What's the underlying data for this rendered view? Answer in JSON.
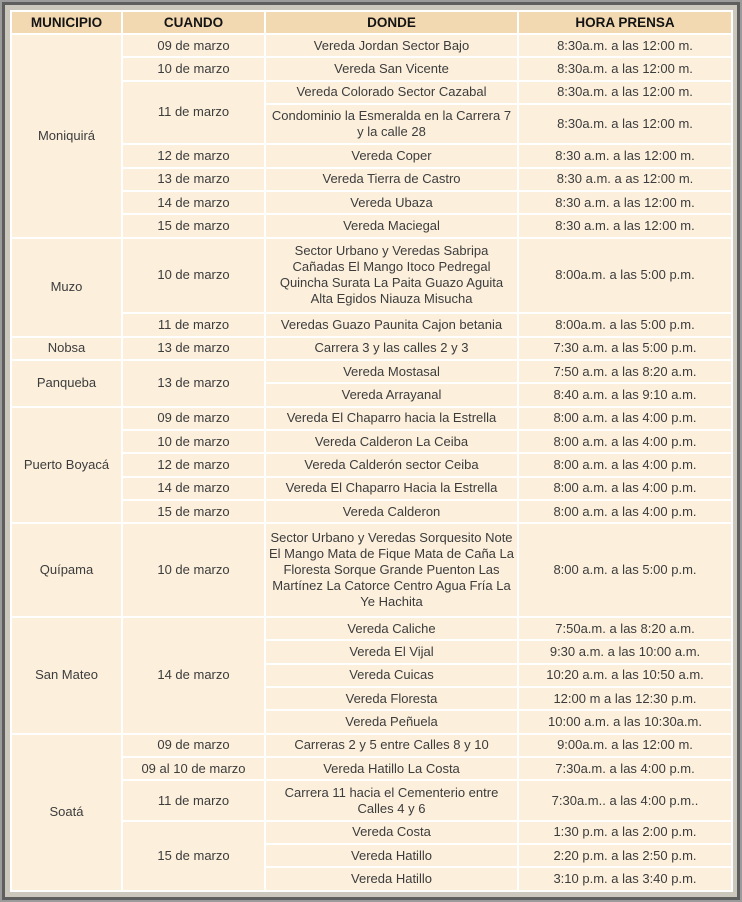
{
  "theme": {
    "header_bg": "#f3d9b1",
    "header_text": "#141414",
    "row_bg": "#fcf0dd",
    "grid_color": "#ffffff",
    "text_color": "#3c3c3c",
    "frame_dark": "#5e5e5e",
    "frame_light": "#ccc7bc"
  },
  "table": {
    "headers": [
      "MUNICIPIO",
      "CUANDO",
      "DONDE",
      "HORA PRENSA"
    ],
    "groups": [
      {
        "municipio": "Moniquirá",
        "rows": [
          {
            "cuando": {
              "text": "09 de marzo",
              "span": 1
            },
            "donde": "Vereda Jordan Sector Bajo",
            "hora": "8:30a.m. a las 12:00 m."
          },
          {
            "cuando": {
              "text": "10 de marzo",
              "span": 1
            },
            "donde": "Vereda San Vicente",
            "hora": "8:30a.m. a las 12:00 m."
          },
          {
            "cuando": {
              "text": "11 de marzo",
              "span": 2
            },
            "donde": "Vereda Colorado Sector Cazabal",
            "hora": "8:30a.m. a las 12:00 m."
          },
          {
            "donde": "Condominio la Esmeralda en la Carrera 7 y la calle 28",
            "hora": "8:30a.m. a las 12:00 m."
          },
          {
            "cuando": {
              "text": "12 de marzo",
              "span": 1
            },
            "donde": "Vereda Coper",
            "hora": "8:30 a.m. a las 12:00 m."
          },
          {
            "cuando": {
              "text": "13 de marzo",
              "span": 1
            },
            "donde": "Vereda Tierra de Castro",
            "hora": "8:30 a.m. a as 12:00 m."
          },
          {
            "cuando": {
              "text": "14 de marzo",
              "span": 1
            },
            "donde": "Vereda Ubaza",
            "hora": "8:30 a.m. a las 12:00 m."
          },
          {
            "cuando": {
              "text": "15 de marzo",
              "span": 1
            },
            "donde": "Vereda Maciegal",
            "hora": "8:30 a.m. a las 12:00 m."
          }
        ]
      },
      {
        "municipio": "Muzo",
        "rows": [
          {
            "cuando": {
              "text": "10 de marzo",
              "span": 1
            },
            "donde": "Sector Urbano y Veredas Sabripa Cañadas El Mango Itoco Pedregal Quincha Surata La Paita Guazo Aguita Alta Egidos Niauza Misucha",
            "hora": "8:00a.m. a las 5:00 p.m."
          },
          {
            "cuando": {
              "text": "11 de marzo",
              "span": 1
            },
            "donde": "Veredas Guazo Paunita Cajon betania",
            "hora": "8:00a.m. a las 5:00 p.m."
          }
        ]
      },
      {
        "municipio": "Nobsa",
        "rows": [
          {
            "cuando": {
              "text": "13 de marzo",
              "span": 1
            },
            "donde": "Carrera 3 y las calles 2 y 3",
            "hora": "7:30 a.m. a las 5:00 p.m."
          }
        ]
      },
      {
        "municipio": "Panqueba",
        "rows": [
          {
            "cuando": {
              "text": "13 de marzo",
              "span": 2
            },
            "donde": "Vereda Mostasal",
            "hora": "7:50 a.m. a las 8:20 a.m."
          },
          {
            "donde": "Vereda Arrayanal",
            "hora": "8:40 a.m. a las 9:10 a.m."
          }
        ]
      },
      {
        "municipio": "Puerto Boyacá",
        "rows": [
          {
            "cuando": {
              "text": "09 de marzo",
              "span": 1
            },
            "donde": "Vereda El Chaparro hacia la Estrella",
            "hora": "8:00 a.m. a las 4:00 p.m."
          },
          {
            "cuando": {
              "text": "10 de marzo",
              "span": 1
            },
            "donde": "Vereda Calderon La Ceiba",
            "hora": "8:00 a.m. a las 4:00 p.m."
          },
          {
            "cuando": {
              "text": "12 de marzo",
              "span": 1
            },
            "donde": "Vereda Calderón sector Ceiba",
            "hora": "8:00 a.m. a las 4:00 p.m."
          },
          {
            "cuando": {
              "text": "14 de marzo",
              "span": 1
            },
            "donde": "Vereda El Chaparro Hacia la Estrella",
            "hora": "8:00 a.m. a las 4:00 p.m."
          },
          {
            "cuando": {
              "text": "15 de marzo",
              "span": 1
            },
            "donde": "Vereda Calderon",
            "hora": "8:00 a.m. a las 4:00 p.m."
          }
        ]
      },
      {
        "municipio": "Quípama",
        "rows": [
          {
            "cuando": {
              "text": "10 de marzo",
              "span": 1
            },
            "donde": "Sector Urbano y Veredas Sorquesito Note El Mango Mata de Fique Mata de Caña La Floresta Sorque Grande Puenton Las Martínez La Catorce Centro Agua Fría La Ye Hachita",
            "hora": "8:00 a.m. a las 5:00 p.m."
          }
        ]
      },
      {
        "municipio": "San Mateo",
        "rows": [
          {
            "cuando": {
              "text": "14 de marzo",
              "span": 5
            },
            "donde": "Vereda Caliche",
            "hora": "7:50a.m. a las 8:20 a.m."
          },
          {
            "donde": "Vereda El Vijal",
            "hora": "9:30 a.m. a las 10:00 a.m."
          },
          {
            "donde": "Vereda Cuicas",
            "hora": "10:20 a.m. a las 10:50 a.m."
          },
          {
            "donde": "Vereda Floresta",
            "hora": "12:00 m a las 12:30 p.m."
          },
          {
            "donde": "Vereda Peñuela",
            "hora": "10:00 a.m. a las 10:30a.m."
          }
        ]
      },
      {
        "municipio": "Soatá",
        "rows": [
          {
            "cuando": {
              "text": "09 de marzo",
              "span": 1
            },
            "donde": "Carreras 2 y 5 entre Calles 8 y 10",
            "hora": "9:00a.m. a las 12:00 m."
          },
          {
            "cuando": {
              "text": "09 al 10 de marzo",
              "span": 1
            },
            "donde": "Vereda Hatillo La Costa",
            "hora": "7:30a.m. a las 4:00 p.m."
          },
          {
            "cuando": {
              "text": "11 de marzo",
              "span": 1
            },
            "donde": "Carrera 11 hacia el Cementerio entre Calles 4 y 6",
            "hora": "7:30a.m.. a las 4:00 p.m.."
          },
          {
            "cuando": {
              "text": "15 de marzo",
              "span": 3
            },
            "donde": "Vereda Costa",
            "hora": "1:30 p.m. a las 2:00 p.m."
          },
          {
            "donde": "Vereda Hatillo",
            "hora": "2:20 p.m. a las 2:50 p.m."
          },
          {
            "donde": "Vereda Hatillo",
            "hora": "3:10 p.m. a las 3:40 p.m."
          }
        ]
      }
    ]
  }
}
